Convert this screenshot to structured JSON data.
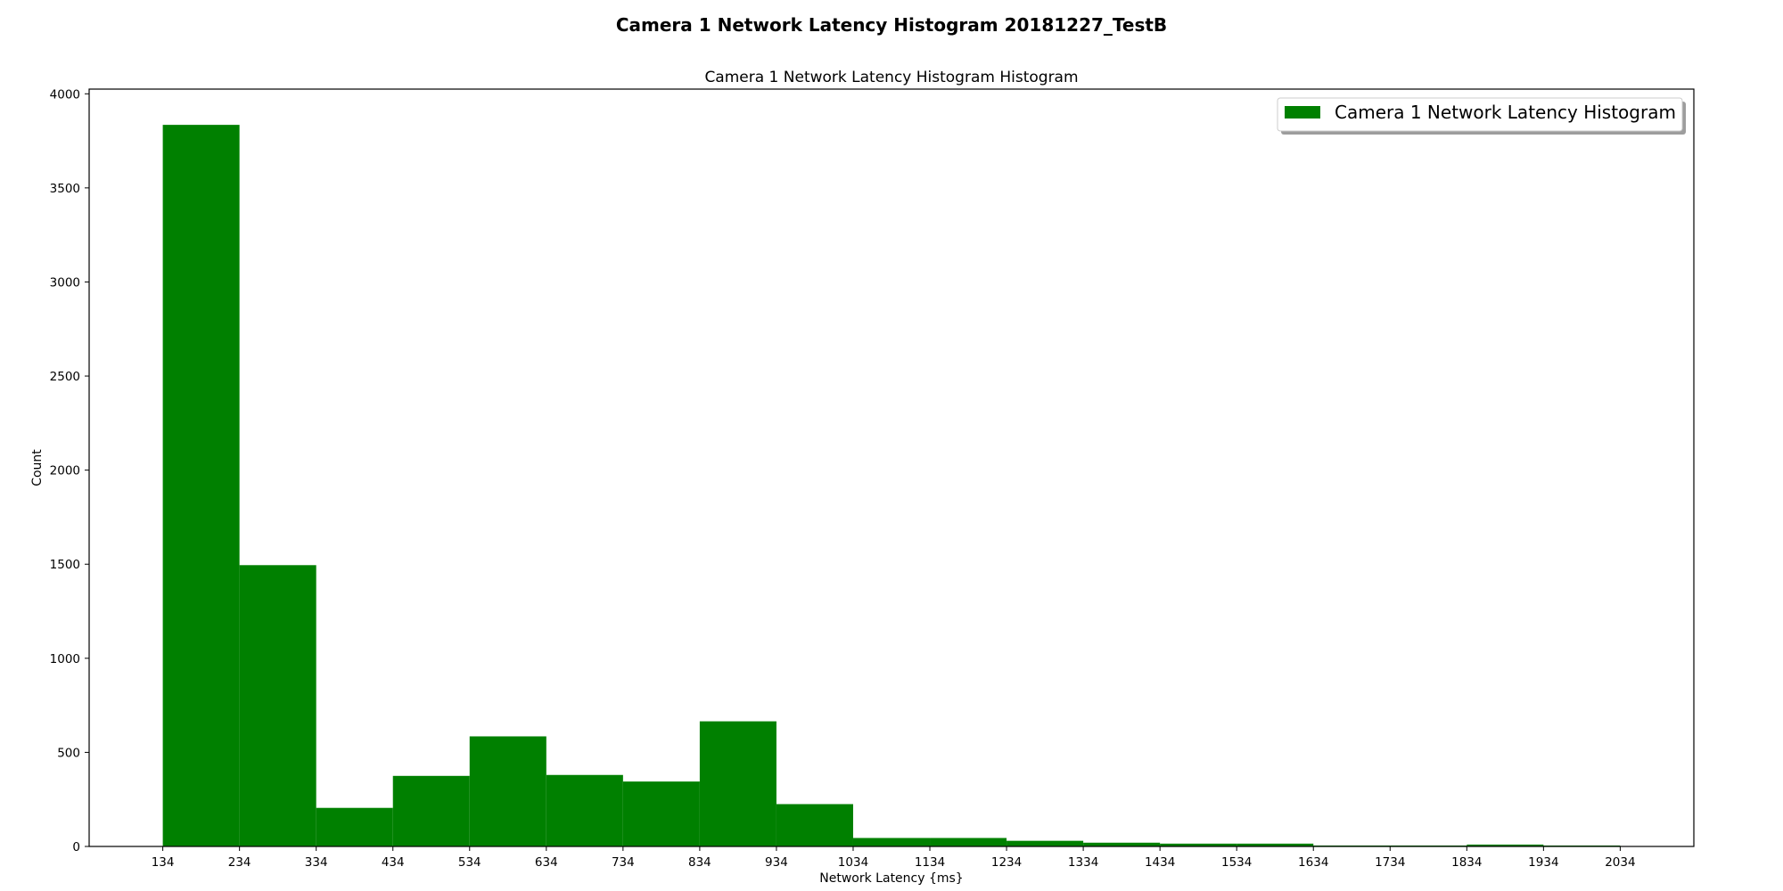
{
  "chart_data": {
    "type": "bar",
    "subtype": "histogram",
    "suptitle": "Camera 1 Network Latency Histogram 20181227_TestB",
    "title": "Camera 1 Network Latency Histogram Histogram",
    "xlabel": "Network Latency {ms}",
    "ylabel": "Count",
    "xlim": [
      38,
      2130
    ],
    "ylim": [
      0,
      4025
    ],
    "xticks": [
      134,
      234,
      334,
      434,
      534,
      634,
      734,
      834,
      934,
      1034,
      1134,
      1234,
      1334,
      1434,
      1534,
      1634,
      1734,
      1834,
      1934,
      2034
    ],
    "yticks": [
      0,
      500,
      1000,
      1500,
      2000,
      2500,
      3000,
      3500,
      4000
    ],
    "bin_edges": [
      134,
      234,
      334,
      434,
      534,
      634,
      734,
      834,
      934,
      1034,
      1134,
      1234,
      1334,
      1434,
      1534,
      1634,
      1734,
      1834,
      1934,
      2034
    ],
    "series": [
      {
        "name": "Camera 1 Network Latency Histogram",
        "color": "#008000",
        "values": [
          3835,
          1495,
          205,
          375,
          585,
          380,
          345,
          665,
          225,
          45,
          45,
          30,
          20,
          15,
          15,
          5,
          5,
          10,
          5
        ]
      }
    ],
    "legend": {
      "position": "upper-right",
      "shadow": true
    },
    "grid": false
  }
}
